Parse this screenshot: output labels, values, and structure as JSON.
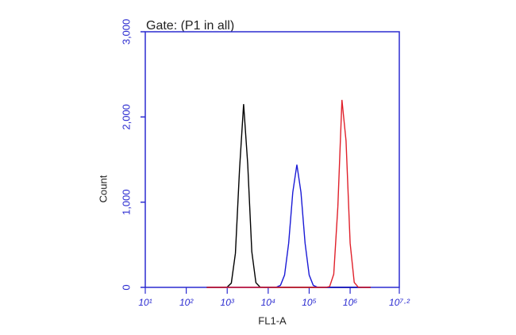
{
  "chart_data": {
    "type": "line",
    "title": "Gate: (P1 in all)",
    "xlabel": "FL1-A",
    "ylabel": "Count",
    "xscale": "log",
    "axis_color": "#2b2bd0",
    "xlim": [
      10,
      15848932
    ],
    "xticks": [
      {
        "value": 10,
        "label": "10¹"
      },
      {
        "value": 100,
        "label": "10²"
      },
      {
        "value": 1000,
        "label": "10³"
      },
      {
        "value": 10000,
        "label": "10⁴"
      },
      {
        "value": 100000,
        "label": "10⁵"
      },
      {
        "value": 1000000,
        "label": "10⁶"
      },
      {
        "value": 15848932,
        "label": "10⁷·²"
      }
    ],
    "ylim": [
      0,
      3000
    ],
    "yticks": [
      0,
      {
        "value": 1000,
        "label": "1,000"
      },
      {
        "value": 2000,
        "label": "2,000"
      },
      {
        "value": 3000,
        "label": "3,000"
      }
    ],
    "x": [
      316,
      398,
      501,
      631,
      794,
      1000,
      1259,
      1585,
      1995,
      2512,
      3162,
      3981,
      5012,
      6310,
      7943,
      10000,
      12589,
      15849,
      19953,
      25119,
      31623,
      39811,
      50119,
      63096,
      79433,
      100000,
      125893,
      158489,
      199526,
      251189,
      316228,
      398107,
      501187,
      630957,
      794328,
      1000000,
      1258925,
      1584893,
      1995262,
      2511886,
      3162278
    ],
    "series": [
      {
        "color": "#000000",
        "values": [
          0,
          0,
          0,
          0,
          0,
          3,
          50,
          400,
          1380,
          2150,
          1450,
          420,
          55,
          4,
          0,
          0,
          0,
          0,
          0,
          0,
          0,
          0,
          0,
          0,
          0,
          0,
          0,
          0,
          0,
          0,
          0,
          0,
          0,
          0,
          0,
          0,
          0,
          0,
          0,
          0,
          0
        ]
      },
      {
        "color": "#1a1ad6",
        "values": [
          0,
          0,
          0,
          0,
          0,
          0,
          0,
          0,
          0,
          0,
          0,
          0,
          0,
          0,
          0,
          0,
          0,
          2,
          24,
          145,
          520,
          1115,
          1440,
          1115,
          520,
          145,
          24,
          2,
          0,
          0,
          0,
          0,
          0,
          0,
          0,
          0,
          0,
          0,
          0,
          0,
          0
        ]
      },
      {
        "color": "#e0202a",
        "values": [
          0,
          0,
          0,
          0,
          0,
          0,
          0,
          0,
          0,
          0,
          0,
          0,
          0,
          0,
          0,
          0,
          0,
          0,
          0,
          0,
          0,
          0,
          0,
          0,
          0,
          0,
          0,
          0,
          0,
          0,
          10,
          155,
          945,
          2200,
          1720,
          520,
          57,
          2,
          0,
          0,
          0
        ]
      }
    ]
  }
}
